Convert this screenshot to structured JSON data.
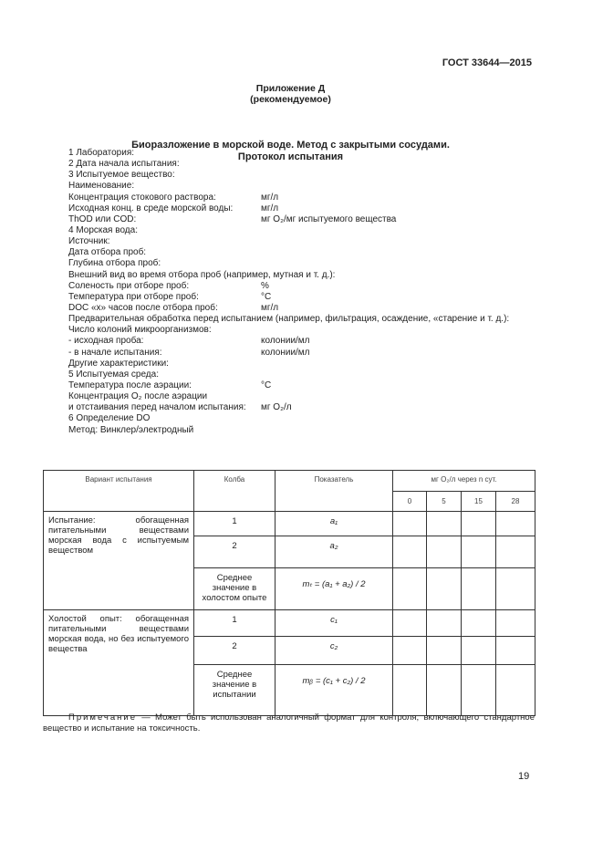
{
  "header": {
    "standard": "ГОСТ 33644—2015"
  },
  "appendix": {
    "title": "Приложение Д",
    "subtitle": "(рекомендуемое)"
  },
  "title": {
    "line1": "Биоразложение в морской воде. Метод с закрытыми сосудами.",
    "line2": "Протокол испытания"
  },
  "fields": [
    {
      "label": "1  Лаборатория:",
      "unit": ""
    },
    {
      "label": "2  Дата начала испытания:",
      "unit": ""
    },
    {
      "label": "3  Испытуемое вещество:",
      "unit": ""
    },
    {
      "label": "Наименование:",
      "unit": ""
    },
    {
      "label": "Концентрация стокового раствора:",
      "unit": "мг/л"
    },
    {
      "label": "Исходная конц. в среде морской воды:",
      "unit": "мг/л"
    },
    {
      "label": "ThOD или COD:",
      "unit": "мг O₂/мг испытуемого вещества"
    },
    {
      "label": "4  Морская вода:",
      "unit": ""
    },
    {
      "label": "Источник:",
      "unit": ""
    },
    {
      "label": "Дата отбора проб:",
      "unit": ""
    },
    {
      "label": "Глубина отбора проб:",
      "unit": ""
    },
    {
      "label": "Внешний вид во время отбора проб (например, мутная и т. д.):",
      "unit": ""
    },
    {
      "label": "Соленость при отборе проб:",
      "unit": "%"
    },
    {
      "label": "Температура при отборе проб:",
      "unit": "°C"
    },
    {
      "label": "DOC «x» часов после отбора проб:",
      "unit": "мг/л"
    },
    {
      "label": "Предварительная обработка перед испытанием (например, фильтрация, осаждение, «старение и т. д.):",
      "unit": ""
    },
    {
      "label": "Число колоний микроорганизмов:",
      "unit": ""
    },
    {
      "label": "- исходная проба:",
      "unit": "колонии/мл"
    },
    {
      "label": "- в начале испытания:",
      "unit": "колонии/мл"
    },
    {
      "label": "Другие характеристики:",
      "unit": ""
    },
    {
      "label": "5  Испытуемая среда:",
      "unit": ""
    },
    {
      "label": "Температура после аэрации:",
      "unit": "°C"
    },
    {
      "label": "Концентрация O₂ после аэрации",
      "unit": ""
    },
    {
      "label": "и отстаивания перед началом испытания:",
      "unit": "мг O₂/л"
    },
    {
      "label": "6  Определение DO",
      "unit": ""
    },
    {
      "label": "Метод: Винклер/электродный",
      "unit": ""
    }
  ],
  "table": {
    "headers": {
      "variant": "Вариант испытания",
      "flask": "Колба",
      "indicator": "Показатель",
      "days": "мг O₂/л через n сут."
    },
    "days": [
      "0",
      "5",
      "15",
      "28"
    ],
    "groups": [
      {
        "variant": "Испытание: обогащенная питательными веществами морская вода с испытуемым веществом",
        "rows": [
          {
            "flask": "1",
            "indicator": "a₁"
          },
          {
            "flask": "2",
            "indicator": "a₂"
          },
          {
            "flask": "Среднее значение в холостом опыте",
            "indicator": "mₜ = (a₁ + a₂) / 2"
          }
        ]
      },
      {
        "variant": "Холостой опыт: обогащенная питательными веществами морская вода, но без испытуемого вещества",
        "rows": [
          {
            "flask": "1",
            "indicator": "c₁"
          },
          {
            "flask": "2",
            "indicator": "c₂"
          },
          {
            "flask": "Среднее значение в испытании",
            "indicator": "mᵦ = (c₁ + c₂) / 2"
          }
        ]
      }
    ]
  },
  "note": {
    "label": "Примечание",
    "text": " — Может быть использован аналогичный формат для контроля, включающего стандартное вещество и испытание на токсичность."
  },
  "page_number": "19"
}
